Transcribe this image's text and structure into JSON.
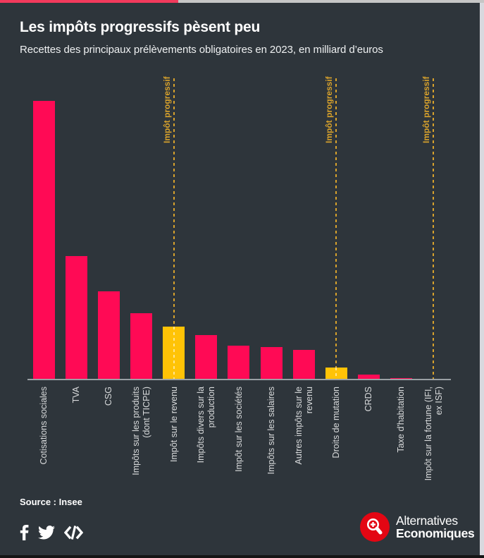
{
  "header": {
    "title": "Les impôts progressifs pèsent peu",
    "subtitle": "Recettes des principaux prélèvements obligatoires en 2023, en milliard d’euros"
  },
  "chart_data": {
    "type": "bar",
    "title": "Les impôts progressifs pèsent peu",
    "subtitle": "Recettes des principaux prélèvements obligatoires en 2023, en milliard d’euros",
    "unit": "milliard d'euros",
    "categories": [
      "Cotisations sociales",
      "TVA",
      "CSG",
      "Impôts sur les produits\n(dont TICPE)",
      "Impôt sur le revenu",
      "Impôts divers sur la\nproduction",
      "Impôt sur les sociétés",
      "Impôts sur les salaires",
      "Autres impôts sur le\nrevenu",
      "Droits de mutation",
      "CRDS",
      "Taxe d'habitation",
      "Impôt sur la fortune (IFI,\nex ISF)"
    ],
    "values": [
      400,
      178,
      127,
      96,
      77,
      65,
      49,
      47,
      43,
      18,
      8,
      3,
      2
    ],
    "progressive_indices": [
      4,
      9,
      12
    ],
    "progressive_label": "Impôt progressif",
    "xlabel": "",
    "ylabel": "",
    "value_range_estimate": [
      0,
      400
    ],
    "gridlines": false,
    "legend": "none",
    "value_axis_visible": false,
    "colors": {
      "bar": "#ff0a55",
      "progressive_bar": "#ffc306",
      "marker": "#d8a22c",
      "axis": "#9aa0a4",
      "tick_label": "#d9dbdc",
      "background": "#2e353b"
    }
  },
  "frame": {
    "topbar_pink": "#f23a5c",
    "topbar_gray": "#c6c6c6",
    "right_strip": "#d8d8de",
    "bottom_strip": "#151515"
  },
  "source": {
    "label": "Source : Insee"
  },
  "social": {
    "facebook": "facebook-share",
    "twitter": "twitter-share",
    "embed": "embed-code"
  },
  "logo": {
    "line1": "Alternatives",
    "line2": "Economiques",
    "red": "#e30613"
  }
}
